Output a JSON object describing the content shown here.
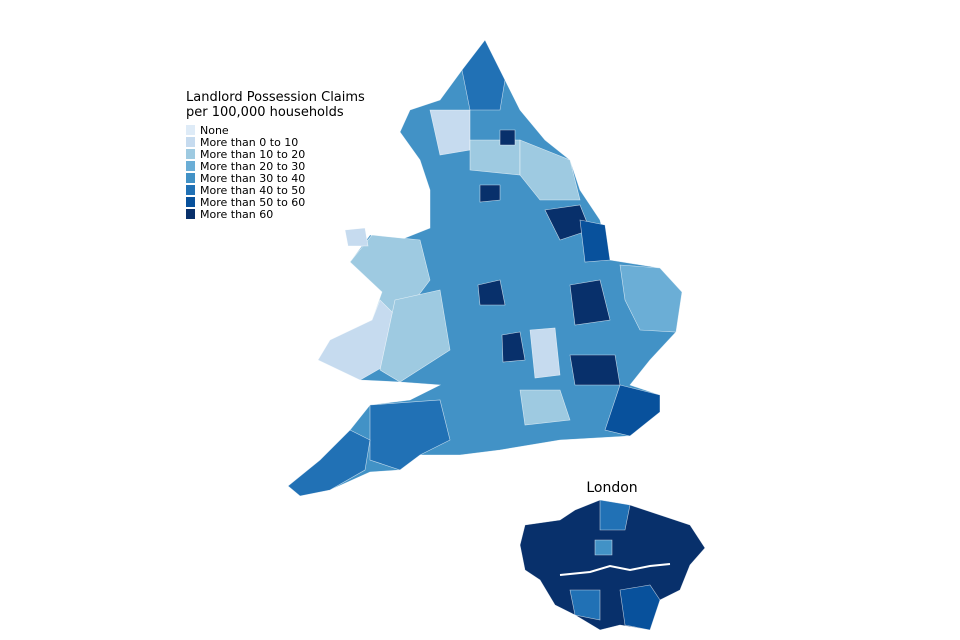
{
  "legend": {
    "title": [
      "Landlord Possession Claims",
      "per 100,000 households"
    ],
    "items": [
      {
        "label": "None",
        "color": "#deebf7"
      },
      {
        "label": "More than 0 to 10",
        "color": "#c6dbef"
      },
      {
        "label": "More than 10 to 20",
        "color": "#9ecae1"
      },
      {
        "label": "More than 20 to 30",
        "color": "#6baed6"
      },
      {
        "label": "More than 30 to 40",
        "color": "#4292c6"
      },
      {
        "label": "More than 40 to 50",
        "color": "#2171b5"
      },
      {
        "label": "More than 50 to 60",
        "color": "#08519c"
      },
      {
        "label": "More than 60",
        "color": "#08306b"
      }
    ]
  },
  "inset": {
    "title": "London"
  }
}
